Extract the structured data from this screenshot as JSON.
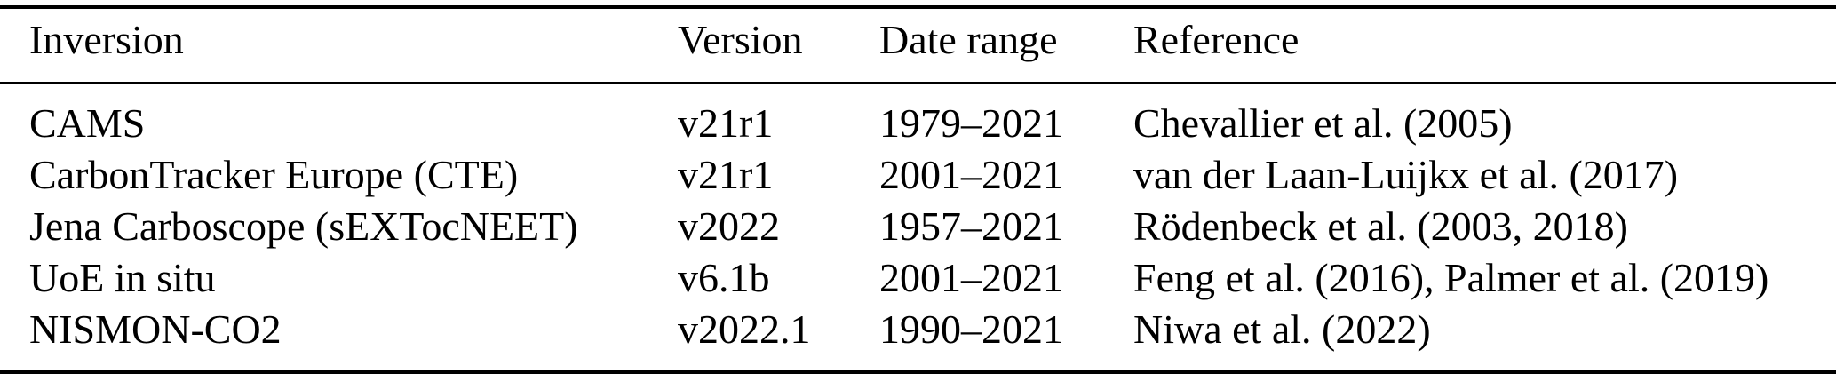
{
  "table": {
    "columns": [
      {
        "label": "Inversion"
      },
      {
        "label": "Version"
      },
      {
        "label": "Date range"
      },
      {
        "label": "Reference"
      }
    ],
    "rows": [
      {
        "inversion": "CAMS",
        "version": "v21r1",
        "date_range": "1979–2021",
        "reference": "Chevallier et al. (2005)"
      },
      {
        "inversion": "CarbonTracker Europe (CTE)",
        "version": "v21r1",
        "date_range": "2001–2021",
        "reference": "van der Laan-Luijkx et al. (2017)"
      },
      {
        "inversion": "Jena Carboscope (sEXTocNEET)",
        "version": "v2022",
        "date_range": "1957–2021",
        "reference": "Rödenbeck et al. (2003, 2018)"
      },
      {
        "inversion": "UoE in situ",
        "version": "v6.1b",
        "date_range": "2001–2021",
        "reference": "Feng et al. (2016), Palmer et al. (2019)"
      },
      {
        "inversion": "NISMON-CO2",
        "version": "v2022.1",
        "date_range": "1990–2021",
        "reference": "Niwa et al. (2022)"
      }
    ],
    "colors": {
      "text": "#000000",
      "rule": "#000000",
      "background": "#ffffff"
    }
  }
}
